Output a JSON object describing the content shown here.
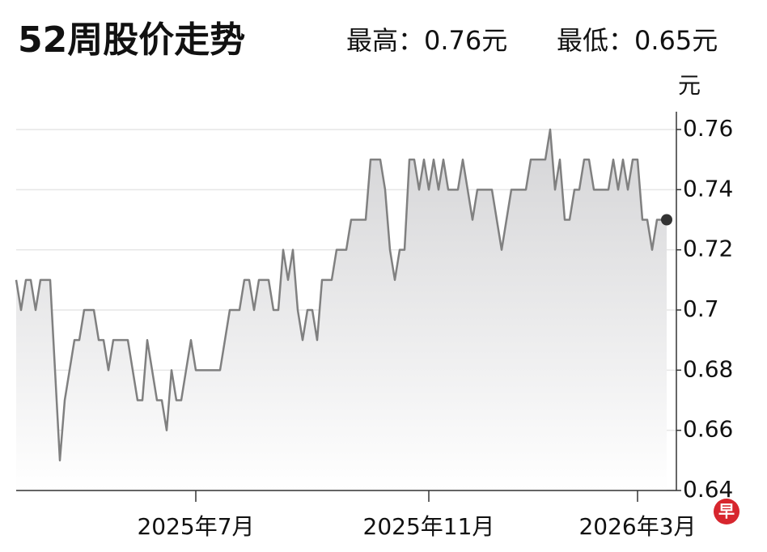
{
  "chart_data": {
    "type": "line",
    "title": "52周股价走势",
    "high_label": "最高：0.76元",
    "low_label": "最低：0.65元",
    "y_label": "元",
    "logo": "早",
    "categories": [
      null,
      null,
      null,
      null,
      null,
      null,
      null,
      null,
      null,
      null,
      null,
      null,
      null,
      null,
      null,
      null,
      null,
      null,
      null,
      null,
      null,
      null,
      null,
      null,
      null,
      null,
      null,
      null,
      null,
      null,
      null,
      null,
      null,
      null,
      null,
      null,
      null,
      "2025年7月",
      null,
      null,
      null,
      null,
      null,
      null,
      null,
      null,
      null,
      null,
      null,
      null,
      null,
      null,
      null,
      null,
      null,
      null,
      null,
      null,
      null,
      null,
      null,
      null,
      null,
      null,
      null,
      null,
      null,
      null,
      null,
      null,
      null,
      null,
      null,
      null,
      null,
      null,
      null,
      null,
      null,
      null,
      null,
      null,
      null,
      null,
      null,
      "2025年11月",
      null,
      null,
      null,
      null,
      null,
      null,
      null,
      null,
      null,
      null,
      null,
      null,
      null,
      null,
      null,
      null,
      null,
      null,
      null,
      null,
      null,
      null,
      null,
      null,
      null,
      null,
      null,
      null,
      null,
      null,
      null,
      null,
      null,
      null,
      null,
      null,
      null,
      null,
      null,
      null,
      null,
      null,
      "2026年3月",
      null,
      null,
      null,
      null,
      null,
      null
    ],
    "values": [
      0.71,
      0.7,
      0.71,
      0.71,
      0.7,
      0.71,
      0.71,
      0.71,
      0.68,
      0.65,
      0.67,
      0.68,
      0.69,
      0.69,
      0.7,
      0.7,
      0.7,
      0.69,
      0.69,
      0.68,
      0.69,
      0.69,
      0.69,
      0.69,
      0.68,
      0.67,
      0.67,
      0.69,
      0.68,
      0.67,
      0.67,
      0.66,
      0.68,
      0.67,
      0.67,
      0.68,
      0.69,
      0.68,
      0.68,
      0.68,
      0.68,
      0.68,
      0.68,
      0.69,
      0.7,
      0.7,
      0.7,
      0.71,
      0.71,
      0.7,
      0.71,
      0.71,
      0.71,
      0.7,
      0.7,
      0.72,
      0.71,
      0.72,
      0.7,
      0.69,
      0.7,
      0.7,
      0.69,
      0.71,
      0.71,
      0.71,
      0.72,
      0.72,
      0.72,
      0.73,
      0.73,
      0.73,
      0.73,
      0.75,
      0.75,
      0.75,
      0.74,
      0.72,
      0.71,
      0.72,
      0.72,
      0.75,
      0.75,
      0.74,
      0.75,
      0.74,
      0.75,
      0.74,
      0.75,
      0.74,
      0.74,
      0.74,
      0.75,
      0.74,
      0.73,
      0.74,
      0.74,
      0.74,
      0.74,
      0.73,
      0.72,
      0.73,
      0.74,
      0.74,
      0.74,
      0.74,
      0.75,
      0.75,
      0.75,
      0.75,
      0.76,
      0.74,
      0.75,
      0.73,
      0.73,
      0.74,
      0.74,
      0.75,
      0.75,
      0.74,
      0.74,
      0.74,
      0.74,
      0.75,
      0.74,
      0.75,
      0.74,
      0.75,
      0.75,
      0.73,
      0.73,
      0.72,
      0.73,
      0.73,
      0.73
    ],
    "color": "#808080",
    "ylim": [
      0.64,
      0.76
    ],
    "yticks": [
      0.64,
      0.66,
      0.68,
      0.7,
      0.72,
      0.74,
      0.76
    ],
    "grid": true
  }
}
